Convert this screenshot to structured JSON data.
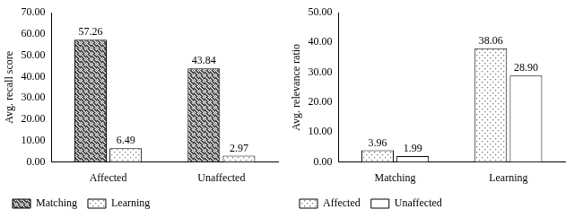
{
  "chart_data": [
    {
      "type": "bar",
      "categories": [
        "Affected",
        "Unaffected"
      ],
      "series": [
        {
          "name": "Matching",
          "color": "#333333",
          "values": [
            57.26,
            43.84
          ]
        },
        {
          "name": "Learning",
          "color": "#777777",
          "values": [
            6.49,
            2.97
          ]
        }
      ],
      "y_label": "Avg. recall score",
      "ylim": [
        0,
        70
      ],
      "yticks": [
        {
          "value": 0,
          "label": "0.00"
        },
        {
          "value": 10,
          "label": "10.00"
        },
        {
          "value": 20,
          "label": "20.00"
        },
        {
          "value": 30,
          "label": "30.00"
        },
        {
          "value": 40,
          "label": "40.00"
        },
        {
          "value": 50,
          "label": "50.00"
        },
        {
          "value": 60,
          "label": "60.00"
        },
        {
          "value": 70,
          "label": "70.00"
        }
      ],
      "data_labels": true,
      "grid": false,
      "legend": "bottom"
    },
    {
      "type": "bar",
      "categories": [
        "Matching",
        "Learning"
      ],
      "series": [
        {
          "name": "Affected",
          "color": "#777777",
          "values": [
            3.96,
            38.06
          ]
        },
        {
          "name": "Unaffected",
          "color": "#ffffff",
          "values": [
            1.99,
            28.9
          ],
          "value_labels": [
            "1.99",
            "28.90"
          ]
        }
      ],
      "y_label": "Avg. relevance ratio",
      "ylim": [
        0,
        50
      ],
      "yticks": [
        {
          "value": 0,
          "label": "0.00"
        },
        {
          "value": 10,
          "label": "10.00"
        },
        {
          "value": 20,
          "label": "20.00"
        },
        {
          "value": 30,
          "label": "30.00"
        },
        {
          "value": 40,
          "label": "40.00"
        },
        {
          "value": 50,
          "label": "50.00"
        }
      ],
      "data_labels": true,
      "grid": false,
      "legend": "bottom"
    }
  ]
}
